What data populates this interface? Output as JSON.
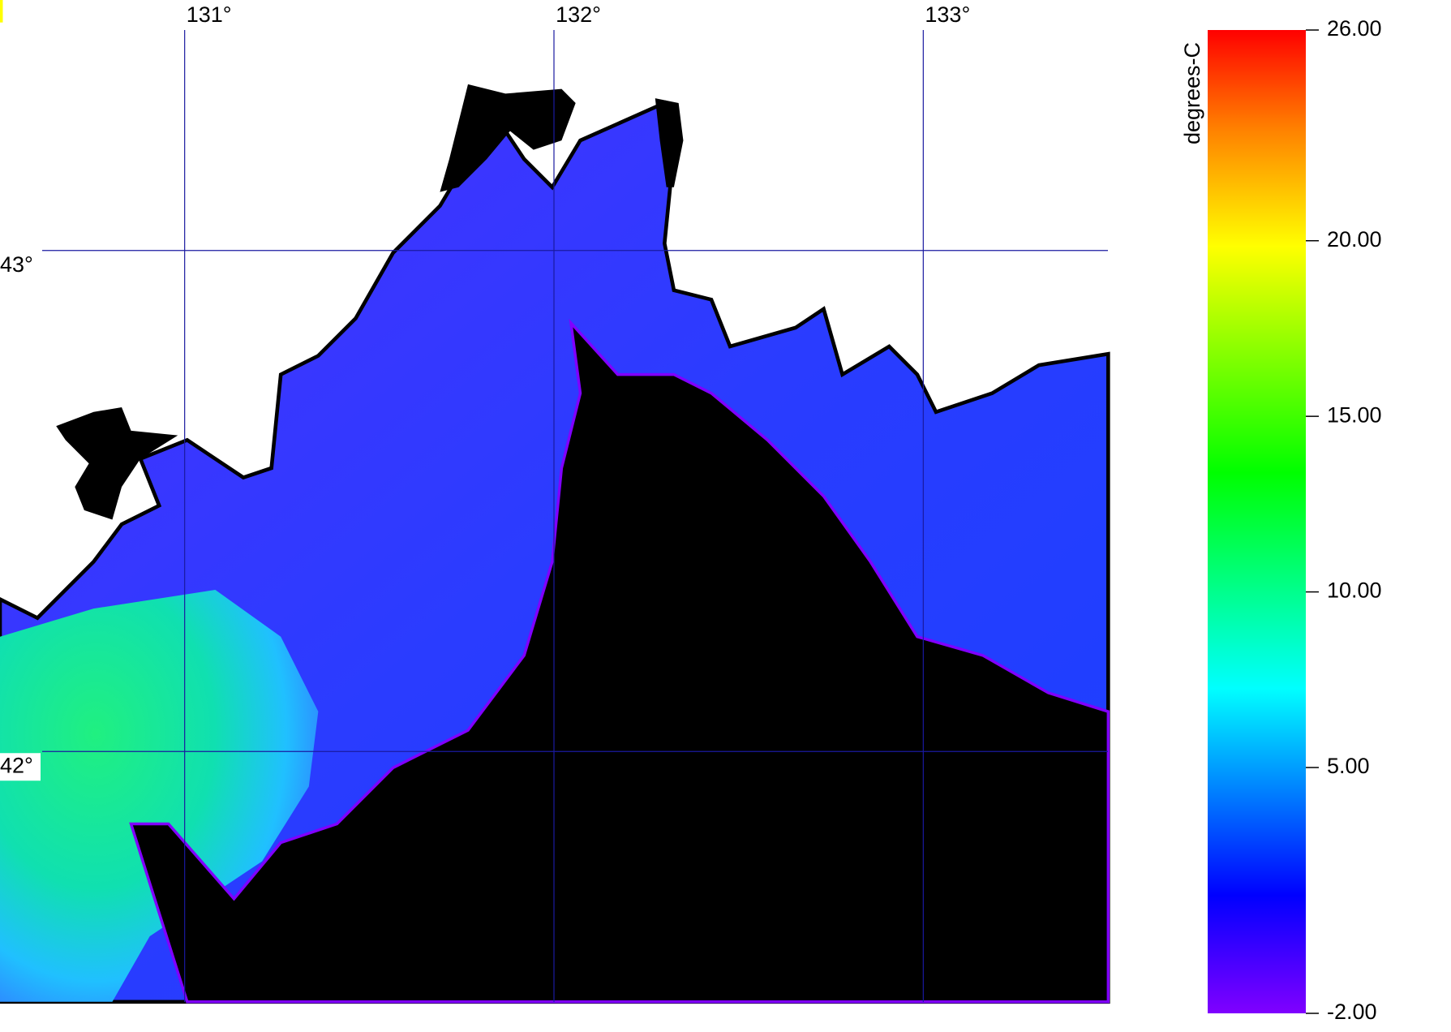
{
  "map": {
    "lonlim": [
      130.5,
      133.5
    ],
    "latlim": [
      41.5,
      43.5
    ],
    "lon_labels": [
      {
        "value": 131,
        "label": "131°"
      },
      {
        "value": 132,
        "label": "132°"
      },
      {
        "value": 133,
        "label": "133°"
      }
    ],
    "lat_labels": [
      {
        "value": 43,
        "label": "43°"
      },
      {
        "value": 42,
        "label": "42°"
      }
    ],
    "grid_color": "#1a1aa0",
    "colorbar": {
      "title": "degrees-C",
      "range": [
        -2,
        26
      ],
      "ticks": [
        {
          "value": 26,
          "label": "26.00"
        },
        {
          "value": 20,
          "label": "20.00"
        },
        {
          "value": 15,
          "label": "15.00"
        },
        {
          "value": 10,
          "label": "10.00"
        },
        {
          "value": 5,
          "label": "5.00"
        },
        {
          "value": -2,
          "label": "-2.00"
        }
      ]
    }
  }
}
